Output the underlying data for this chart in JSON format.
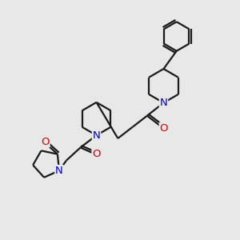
{
  "bg_color": "#e8e8e8",
  "line_color": "#1a1a1a",
  "N_color": "#0000cc",
  "O_color": "#cc0000",
  "bond_lw": 1.6,
  "font_size": 9.5,
  "xlim": [
    0,
    10
  ],
  "ylim": [
    0,
    10
  ]
}
